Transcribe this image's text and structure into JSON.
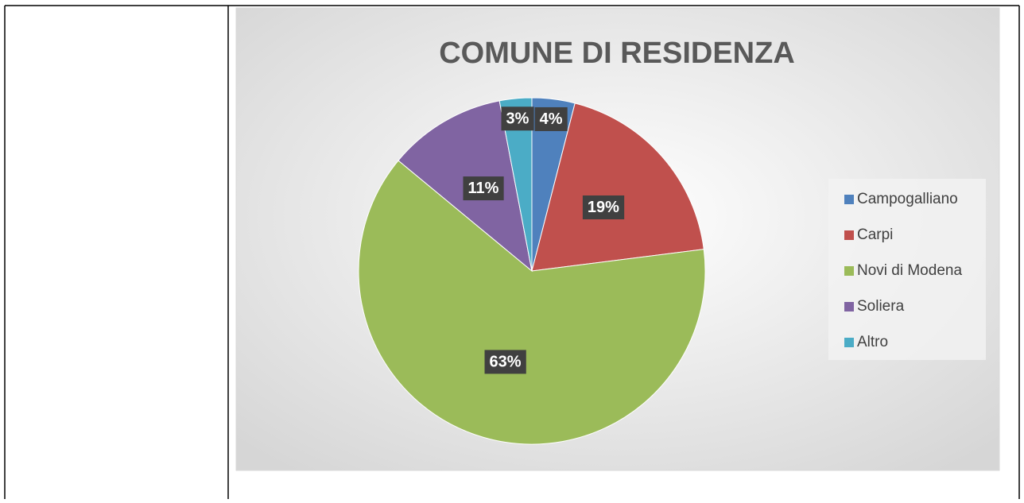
{
  "chart_data": {
    "type": "pie",
    "title": "COMUNE DI RESIDENZA",
    "categories": [
      "Campogalliano",
      "Carpi",
      "Novi di Modena",
      "Soliera",
      "Altro"
    ],
    "values": [
      4,
      19,
      63,
      11,
      3
    ],
    "value_labels": [
      "4%",
      "19%",
      "63%",
      "11%",
      "3%"
    ],
    "colors": [
      "#4f81bd",
      "#c0504d",
      "#9bbb59",
      "#8064a2",
      "#4bacc6"
    ],
    "legend": "right"
  }
}
